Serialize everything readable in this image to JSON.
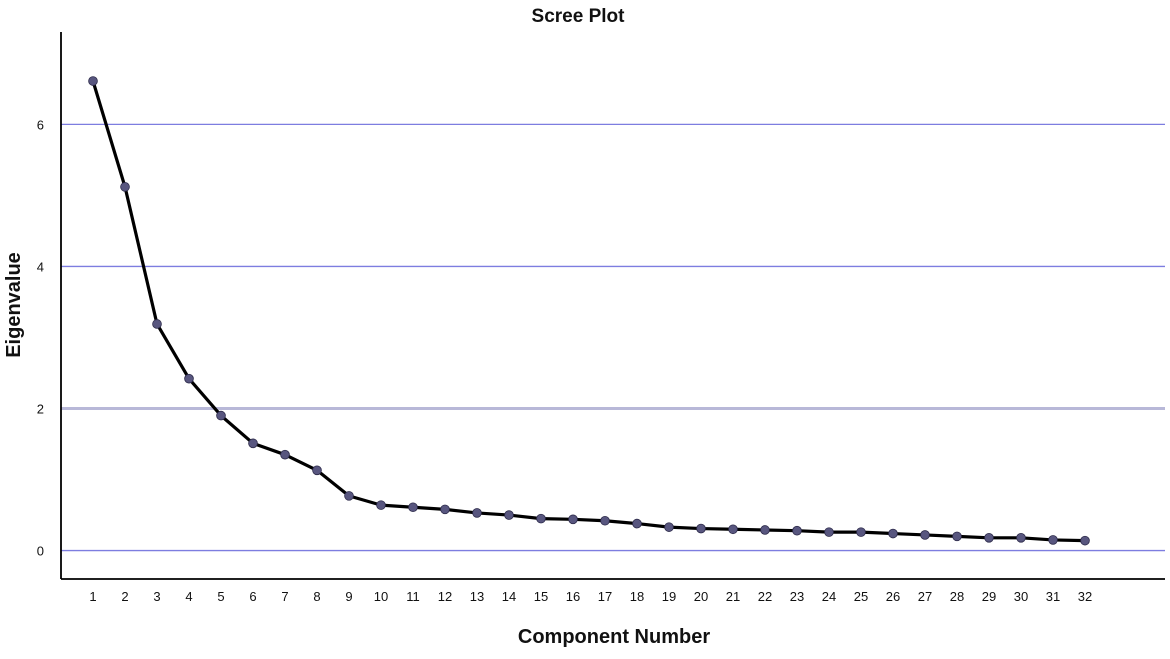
{
  "chart_data": {
    "type": "line",
    "title": "Scree Plot",
    "xlabel": "Component Number",
    "ylabel": "Eigenvalue",
    "x": [
      1,
      2,
      3,
      4,
      5,
      6,
      7,
      8,
      9,
      10,
      11,
      12,
      13,
      14,
      15,
      16,
      17,
      18,
      19,
      20,
      21,
      22,
      23,
      24,
      25,
      26,
      27,
      28,
      29,
      30,
      31,
      32
    ],
    "y": [
      6.61,
      5.12,
      3.19,
      2.42,
      1.9,
      1.51,
      1.35,
      1.13,
      0.77,
      0.64,
      0.61,
      0.58,
      0.53,
      0.5,
      0.45,
      0.44,
      0.42,
      0.38,
      0.33,
      0.31,
      0.3,
      0.29,
      0.28,
      0.26,
      0.26,
      0.24,
      0.22,
      0.2,
      0.18,
      0.18,
      0.15,
      0.14
    ],
    "x_tick_labels": [
      "1",
      "2",
      "3",
      "4",
      "5",
      "6",
      "7",
      "8",
      "9",
      "10",
      "11",
      "12",
      "13",
      "14",
      "15",
      "16",
      "17",
      "18",
      "19",
      "20",
      "21",
      "22",
      "23",
      "24",
      "25",
      "26",
      "27",
      "28",
      "29",
      "30",
      "31",
      "32"
    ],
    "y_tick_labels": [
      "0",
      "2",
      "4",
      "6"
    ],
    "y_ticks": [
      0,
      2,
      4,
      6
    ],
    "ylim": [
      -0.4,
      7.3
    ],
    "xlim": [
      0,
      34.5
    ],
    "grid": "horizontal",
    "legend": "none",
    "colors": {
      "line": "#000000",
      "marker": "#58567f",
      "grid": "#7d7de0",
      "grid_highlight": "#b8b8d8",
      "axis": "#000000"
    }
  }
}
